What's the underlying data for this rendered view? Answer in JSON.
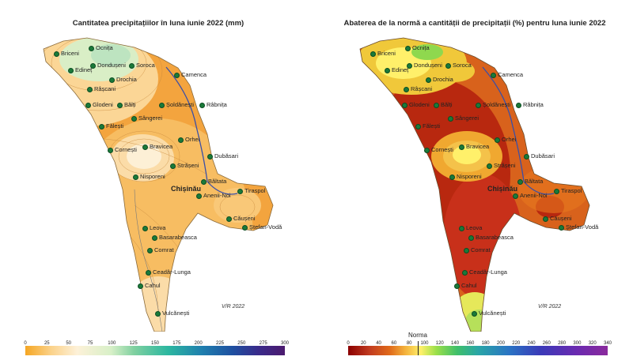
{
  "left_map": {
    "title": "Cantitatea precipitațiilor în luna iunie 2022 (mm)",
    "signature": "V/R 2022",
    "colorbar_ticks": [
      "0",
      "25",
      "50",
      "75",
      "100",
      "125",
      "150",
      "175",
      "200",
      "225",
      "250",
      "275",
      "300"
    ]
  },
  "right_map": {
    "title": "Abaterea de la normă a cantității de precipitații (%) pentru luna iunie 2022",
    "signature": "V/R 2022",
    "norma_label": "Norma",
    "colorbar_ticks": [
      "0",
      "20",
      "40",
      "60",
      "80",
      "100",
      "120",
      "140",
      "160",
      "180",
      "200",
      "220",
      "240",
      "260",
      "280",
      "300",
      "320",
      "340"
    ]
  },
  "cities": [
    {
      "name": "Ocnița"
    },
    {
      "name": "Briceni"
    },
    {
      "name": "Dondușeni"
    },
    {
      "name": "Soroca"
    },
    {
      "name": "Edineț"
    },
    {
      "name": "Camenca"
    },
    {
      "name": "Drochia"
    },
    {
      "name": "Râșcani"
    },
    {
      "name": "Glodeni"
    },
    {
      "name": "Bălți"
    },
    {
      "name": "Șoldănești"
    },
    {
      "name": "Râbnița"
    },
    {
      "name": "Sângerei"
    },
    {
      "name": "Fălești"
    },
    {
      "name": "Orhei"
    },
    {
      "name": "Cornești"
    },
    {
      "name": "Bravicea"
    },
    {
      "name": "Dubăsari"
    },
    {
      "name": "Strășeni"
    },
    {
      "name": "Nisporeni"
    },
    {
      "name": "Chișinău"
    },
    {
      "name": "Tiraspol"
    },
    {
      "name": "Anenii-Noi"
    },
    {
      "name": "Băltata"
    },
    {
      "name": "Căușeni"
    },
    {
      "name": "Ștefan-Vodă"
    },
    {
      "name": "Leova"
    },
    {
      "name": "Basarabeasca"
    },
    {
      "name": "Comrat"
    },
    {
      "name": "Ceadâr-Lunga"
    },
    {
      "name": "Cahul"
    },
    {
      "name": "Vulcănești"
    }
  ],
  "colors": {
    "left_scale": [
      "#f5a623",
      "#fbd28a",
      "#fdf1d8",
      "#d8f0c8",
      "#7fd0a0",
      "#2cb7a0",
      "#1f7fae",
      "#1e4fa0",
      "#3a2a8a",
      "#4b1a6e"
    ],
    "right_scale": [
      "#8b0000",
      "#c0391f",
      "#e06a1a",
      "#f4b23c",
      "#fff06a",
      "#9adf4a",
      "#3fbf6a",
      "#29a6a6",
      "#2a74c4",
      "#3a3ab8",
      "#6a2ab0",
      "#8a2a9c"
    ]
  }
}
